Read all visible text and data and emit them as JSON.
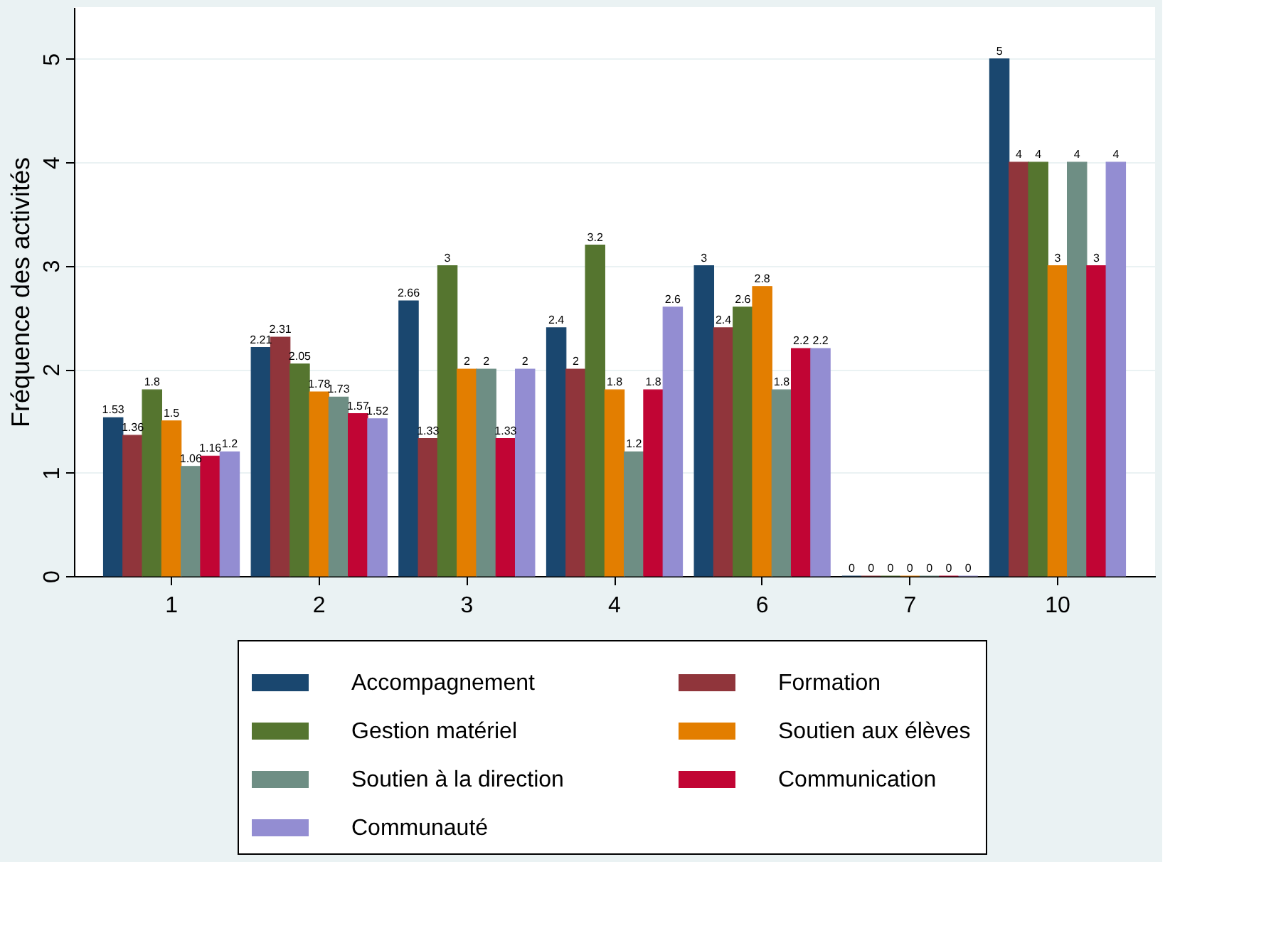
{
  "chart_data": {
    "type": "bar",
    "ylabel": "Fréquence des activités",
    "categories": [
      "1",
      "2",
      "3",
      "4",
      "6",
      "7",
      "10"
    ],
    "series": [
      {
        "name": "Accompagnement",
        "color": "#1a476f",
        "values": [
          1.53,
          2.21,
          2.66,
          2.4,
          3,
          0,
          5
        ]
      },
      {
        "name": "Formation",
        "color": "#90353b",
        "values": [
          1.36,
          2.31,
          1.33,
          2,
          2.4,
          0,
          4
        ]
      },
      {
        "name": "Gestion matériel",
        "color": "#55752f",
        "values": [
          1.8,
          2.05,
          3,
          3.2,
          2.6,
          0,
          4
        ]
      },
      {
        "name": "Soutien aux élèves",
        "color": "#e37e00",
        "values": [
          1.5,
          1.78,
          2,
          1.8,
          2.8,
          0,
          3
        ]
      },
      {
        "name": "Soutien à la direction",
        "color": "#6e8e84",
        "values": [
          1.06,
          1.73,
          2,
          1.2,
          1.8,
          0,
          4
        ]
      },
      {
        "name": "Communication",
        "color": "#c10534",
        "values": [
          1.16,
          1.57,
          1.33,
          1.8,
          2.2,
          0,
          3
        ]
      },
      {
        "name": "Communauté",
        "color": "#938dd2",
        "values": [
          1.2,
          1.52,
          2,
          2.6,
          2.2,
          0,
          4
        ]
      }
    ],
    "ylim": [
      0,
      5.5
    ],
    "yticks": [
      0,
      1,
      2,
      3,
      4,
      5
    ],
    "grid": "y",
    "legend": "bottom",
    "data_labels": true
  }
}
